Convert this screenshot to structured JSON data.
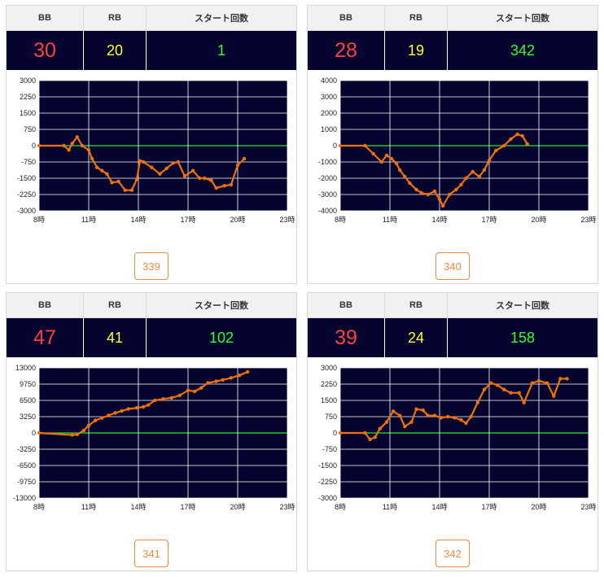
{
  "headers": {
    "bb": "BB",
    "rb": "RB",
    "start": "スタート回数"
  },
  "x_ticks": [
    "8時",
    "11時",
    "14時",
    "17時",
    "20時",
    "23時"
  ],
  "colors": {
    "panel_bg": "#04042e",
    "zero_line": "#30e030",
    "series": "#f07010",
    "bb": "#ff4040",
    "rb": "#ffff30",
    "start": "#30ff30",
    "button": "#f28a40"
  },
  "cards": [
    {
      "bb": "30",
      "rb": "20",
      "start": "1",
      "machine": "339",
      "chart_data": {
        "type": "line",
        "y_ticks": [
          "3000",
          "2250",
          "1500",
          "750",
          "0",
          "-750",
          "-1500",
          "-2250",
          "-3000"
        ],
        "ylim": [
          -3000,
          3000
        ],
        "xlim": [
          8,
          23
        ],
        "x": [
          8,
          9.5,
          9.8,
          10,
          10.3,
          10.6,
          11,
          11.2,
          11.5,
          11.8,
          12.1,
          12.4,
          12.8,
          13.2,
          13.6,
          13.9,
          14.1,
          14.3,
          14.8,
          15.3,
          15.7,
          16.1,
          16.4,
          16.8,
          17.3,
          17.7,
          18,
          18.4,
          18.7,
          19.2,
          19.6,
          20,
          20.4
        ],
        "values": [
          0,
          0,
          -200,
          100,
          400,
          0,
          -200,
          -600,
          -1000,
          -1150,
          -1300,
          -1700,
          -1650,
          -2050,
          -2050,
          -1550,
          -700,
          -750,
          -1000,
          -1300,
          -1050,
          -800,
          -750,
          -1400,
          -1150,
          -1500,
          -1500,
          -1600,
          -1950,
          -1850,
          -1800,
          -900,
          -600
        ]
      }
    },
    {
      "bb": "28",
      "rb": "19",
      "start": "342",
      "machine": "340",
      "chart_data": {
        "type": "line",
        "y_ticks": [
          "4000",
          "3000",
          "2000",
          "1000",
          "0",
          "-1000",
          "-2000",
          "-3000",
          "-4000"
        ],
        "ylim": [
          -4000,
          4000
        ],
        "xlim": [
          8,
          23
        ],
        "x": [
          8,
          9.5,
          10,
          10.5,
          10.8,
          11.1,
          11.4,
          11.6,
          11.9,
          12.2,
          12.6,
          12.9,
          13.3,
          13.7,
          14,
          14.2,
          14.6,
          15,
          15.3,
          15.6,
          16,
          16.4,
          16.7,
          17,
          17.4,
          17.9,
          18.3,
          18.7,
          19,
          19.3
        ],
        "values": [
          0,
          0,
          -500,
          -1000,
          -600,
          -800,
          -1100,
          -1500,
          -1900,
          -2300,
          -2700,
          -2900,
          -3000,
          -2800,
          -3300,
          -3700,
          -3000,
          -2700,
          -2400,
          -2000,
          -1600,
          -1900,
          -1500,
          -900,
          -300,
          0,
          400,
          700,
          600,
          100
        ]
      }
    },
    {
      "bb": "47",
      "rb": "41",
      "start": "102",
      "machine": "341",
      "chart_data": {
        "type": "line",
        "y_ticks": [
          "13000",
          "9750",
          "6500",
          "3250",
          "0",
          "-3250",
          "-6500",
          "-9750",
          "-13000"
        ],
        "ylim": [
          -13000,
          13000
        ],
        "xlim": [
          8,
          23
        ],
        "x": [
          8,
          10,
          10.3,
          10.7,
          11,
          11.4,
          11.8,
          12.2,
          12.6,
          13,
          13.4,
          13.9,
          14.3,
          14.6,
          15,
          15.5,
          16,
          16.5,
          17,
          17.4,
          17.8,
          18.2,
          18.7,
          19.1,
          19.6,
          20.1,
          20.6
        ],
        "values": [
          0,
          -400,
          -300,
          500,
          1500,
          2500,
          3000,
          3500,
          4000,
          4400,
          4800,
          5000,
          5200,
          5600,
          6500,
          6800,
          7000,
          7500,
          8500,
          8300,
          9000,
          10000,
          10300,
          10600,
          11000,
          11500,
          12200
        ]
      }
    },
    {
      "bb": "39",
      "rb": "24",
      "start": "158",
      "machine": "342",
      "chart_data": {
        "type": "line",
        "y_ticks": [
          "3000",
          "2250",
          "1500",
          "750",
          "0",
          "-750",
          "-1500",
          "-2250",
          "-3000"
        ],
        "ylim": [
          -3000,
          3000
        ],
        "xlim": [
          8,
          23
        ],
        "x": [
          8,
          9.5,
          9.8,
          10.1,
          10.4,
          10.8,
          11.2,
          11.6,
          11.9,
          12.3,
          12.6,
          13,
          13.3,
          13.7,
          14.1,
          14.5,
          14.9,
          15.3,
          15.6,
          15.9,
          16.3,
          16.7,
          17.1,
          17.5,
          17.9,
          18.3,
          18.8,
          19.1,
          19.6,
          20,
          20.5,
          20.9,
          21.3,
          21.7
        ],
        "values": [
          0,
          0,
          -300,
          -200,
          200,
          500,
          1000,
          800,
          300,
          500,
          1100,
          1050,
          800,
          800,
          700,
          750,
          700,
          600,
          450,
          750,
          1400,
          2000,
          2300,
          2200,
          2000,
          1850,
          1850,
          1400,
          2300,
          2400,
          2300,
          1700,
          2500,
          2500
        ]
      }
    }
  ]
}
